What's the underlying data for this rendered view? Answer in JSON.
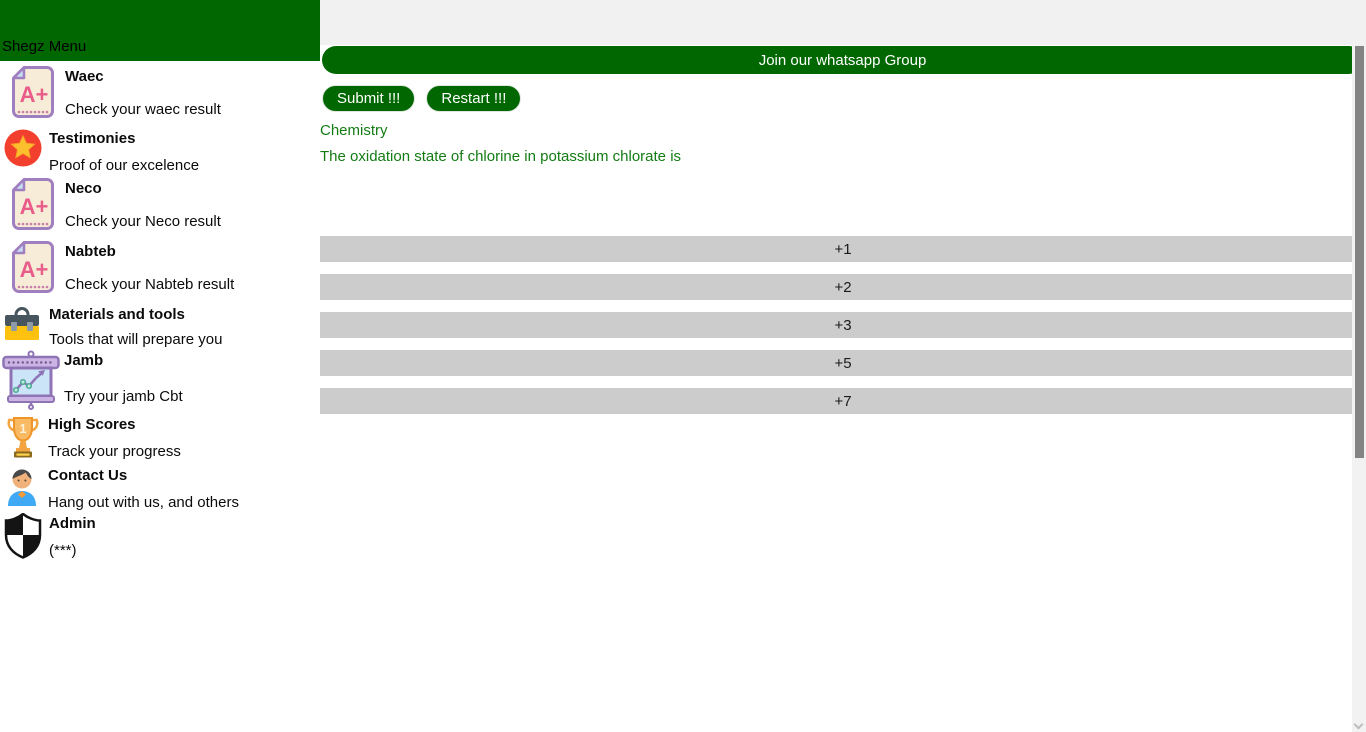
{
  "sidebar": {
    "title": "Shegz Menu",
    "items": [
      {
        "id": "waec",
        "icon": "result-doc",
        "title": "Waec",
        "subtitle": "Check your waec result"
      },
      {
        "id": "testimonies",
        "icon": "star-badge",
        "title": "Testimonies",
        "subtitle": "Proof of our excelence"
      },
      {
        "id": "neco",
        "icon": "result-doc",
        "title": "Neco",
        "subtitle": "Check your Neco result"
      },
      {
        "id": "nabteb",
        "icon": "result-doc",
        "title": "Nabteb",
        "subtitle": "Check your Nabteb result"
      },
      {
        "id": "materials-and-tools",
        "icon": "toolbox",
        "title": "Materials and tools",
        "subtitle": "Tools that will prepare you"
      },
      {
        "id": "jamb",
        "icon": "chart-board",
        "title": "Jamb",
        "subtitle": "Try your jamb Cbt"
      },
      {
        "id": "high-scores",
        "icon": "trophy",
        "title": "High Scores",
        "subtitle": "Track your progress"
      },
      {
        "id": "contact-us",
        "icon": "person",
        "title": "Contact Us",
        "subtitle": "Hang out with us, and others"
      },
      {
        "id": "admin",
        "icon": "shield",
        "title": "Admin",
        "subtitle": "(***)"
      }
    ]
  },
  "main": {
    "banner_label": "Join our whatsapp Group",
    "submit_label": "Submit !!!",
    "restart_label": "Restart !!!",
    "subject": "Chemistry",
    "question": "The oxidation state of chlorine in potassium chlorate is",
    "options": [
      "+1",
      "+2",
      "+3",
      "+5",
      "+7"
    ]
  },
  "colors": {
    "accent_green": "#016801",
    "question_green": "#137c13",
    "option_gray": "#cccccc",
    "strip_gray": "#f1f1f1"
  }
}
